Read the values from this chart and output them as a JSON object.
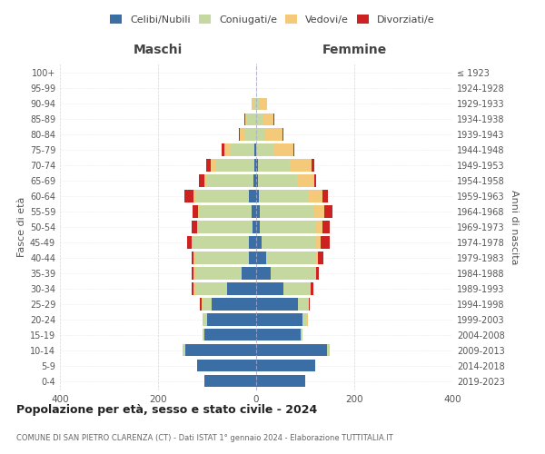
{
  "age_groups": [
    "0-4",
    "5-9",
    "10-14",
    "15-19",
    "20-24",
    "25-29",
    "30-34",
    "35-39",
    "40-44",
    "45-49",
    "50-54",
    "55-59",
    "60-64",
    "65-69",
    "70-74",
    "75-79",
    "80-84",
    "85-89",
    "90-94",
    "95-99",
    "100+"
  ],
  "birth_years": [
    "2019-2023",
    "2014-2018",
    "2009-2013",
    "2004-2008",
    "1999-2003",
    "1994-1998",
    "1989-1993",
    "1984-1988",
    "1979-1983",
    "1974-1978",
    "1969-1973",
    "1964-1968",
    "1959-1963",
    "1954-1958",
    "1949-1953",
    "1944-1948",
    "1939-1943",
    "1934-1938",
    "1929-1933",
    "1924-1928",
    "≤ 1923"
  ],
  "males": {
    "celibi": [
      105,
      120,
      145,
      105,
      100,
      90,
      60,
      30,
      15,
      15,
      8,
      10,
      15,
      5,
      3,
      3,
      0,
      0,
      0,
      0,
      0
    ],
    "coniugati": [
      0,
      0,
      5,
      5,
      8,
      20,
      65,
      95,
      110,
      115,
      110,
      105,
      110,
      95,
      80,
      50,
      25,
      18,
      5,
      0,
      0
    ],
    "vedovi": [
      0,
      0,
      0,
      0,
      2,
      2,
      2,
      2,
      2,
      2,
      3,
      3,
      3,
      5,
      10,
      12,
      8,
      5,
      5,
      0,
      0
    ],
    "divorziati": [
      0,
      0,
      0,
      0,
      0,
      2,
      5,
      5,
      5,
      8,
      10,
      12,
      18,
      12,
      8,
      5,
      3,
      2,
      0,
      0,
      0
    ]
  },
  "females": {
    "nubili": [
      100,
      120,
      145,
      90,
      95,
      85,
      55,
      30,
      20,
      12,
      8,
      8,
      5,
      3,
      3,
      0,
      0,
      0,
      0,
      0,
      0
    ],
    "coniugate": [
      0,
      0,
      5,
      5,
      8,
      20,
      55,
      90,
      100,
      110,
      115,
      110,
      100,
      80,
      65,
      35,
      18,
      15,
      5,
      0,
      0
    ],
    "vedove": [
      0,
      0,
      0,
      0,
      2,
      2,
      2,
      3,
      5,
      10,
      12,
      20,
      30,
      35,
      45,
      40,
      35,
      20,
      18,
      0,
      0
    ],
    "divorziate": [
      0,
      0,
      0,
      0,
      0,
      2,
      5,
      5,
      12,
      18,
      15,
      18,
      12,
      5,
      5,
      3,
      3,
      2,
      0,
      0,
      0
    ]
  },
  "colors": {
    "celibi": "#3b6ea5",
    "coniugati": "#c5d8a0",
    "vedovi": "#f5c97a",
    "divorziati": "#cc2222"
  },
  "xlim": 400,
  "title": "Popolazione per età, sesso e stato civile - 2024",
  "subtitle": "COMUNE DI SAN PIETRO CLARENZA (CT) - Dati ISTAT 1° gennaio 2024 - Elaborazione TUTTITALIA.IT",
  "xlabel_left": "Maschi",
  "xlabel_right": "Femmine",
  "ylabel_left": "Fasce di età",
  "ylabel_right": "Anni di nascita"
}
